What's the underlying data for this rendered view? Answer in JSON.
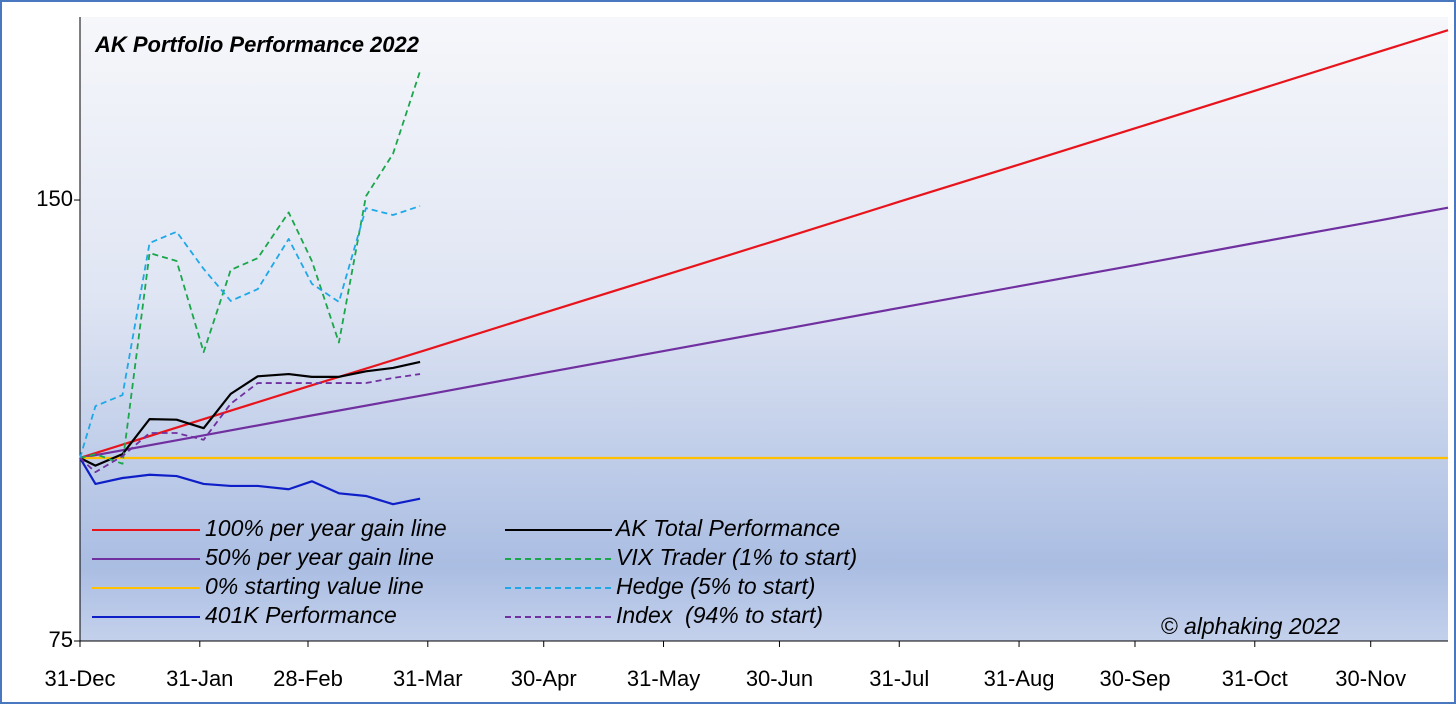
{
  "chart_data": {
    "type": "line",
    "title": "AK Portfolio Performance 2022",
    "annotation": "© alphaking 2022",
    "log_scale": true,
    "xlim": [
      0,
      354
    ],
    "xticks": [
      {
        "value": 0,
        "label": "31-Dec"
      },
      {
        "value": 31,
        "label": "31-Jan"
      },
      {
        "value": 59,
        "label": "28-Feb"
      },
      {
        "value": 90,
        "label": "31-Mar"
      },
      {
        "value": 120,
        "label": "30-Apr"
      },
      {
        "value": 151,
        "label": "31-May"
      },
      {
        "value": 181,
        "label": "30-Jun"
      },
      {
        "value": 212,
        "label": "31-Jul"
      },
      {
        "value": 243,
        "label": "31-Aug"
      },
      {
        "value": 273,
        "label": "30-Sep"
      },
      {
        "value": 304,
        "label": "31-Oct"
      },
      {
        "value": 334,
        "label": "30-Nov"
      }
    ],
    "ylim": [
      75,
      200
    ],
    "yticks": [
      75,
      150
    ],
    "series": [
      {
        "name": "100% per year gain line",
        "color": "#e8141c",
        "style": "solid",
        "x": [
          0,
          31,
          59,
          90,
          120,
          151,
          181,
          212,
          243,
          273,
          304,
          334,
          354
        ],
        "values": [
          100,
          106.1,
          111.9,
          118.6,
          125.6,
          133.2,
          141.0,
          149.6,
          158.6,
          167.9,
          178.1,
          188.6,
          195.9
        ]
      },
      {
        "name": "50% per year gain line",
        "color": "#7030a0",
        "style": "solid",
        "x": [
          0,
          31,
          59,
          90,
          120,
          151,
          181,
          212,
          243,
          273,
          304,
          334,
          354
        ],
        "values": [
          100,
          103.5,
          106.8,
          110.5,
          114.3,
          118.3,
          122.3,
          126.6,
          131.0,
          135.4,
          140.2,
          144.9,
          148.2
        ]
      },
      {
        "name": "0% starting value line",
        "color": "#ffc000",
        "style": "solid",
        "x": [
          0,
          354
        ],
        "values": [
          100,
          100
        ]
      },
      {
        "name": "401K Performance",
        "color": "#0f1fc8",
        "style": "solid",
        "x": [
          0,
          4,
          11,
          18,
          25,
          32,
          39,
          46,
          54,
          60,
          67,
          74,
          81,
          88
        ],
        "values": [
          100,
          96.0,
          96.9,
          97.4,
          97.2,
          96.0,
          95.7,
          95.7,
          95.2,
          96.4,
          94.6,
          94.2,
          93.0,
          93.8
        ]
      },
      {
        "name": "AK Total Performance",
        "color": "#000000",
        "style": "solid",
        "x": [
          0,
          4,
          11,
          18,
          25,
          32,
          39,
          46,
          54,
          60,
          67,
          74,
          81,
          88
        ],
        "values": [
          100,
          98.8,
          100.6,
          106.3,
          106.2,
          104.8,
          110.6,
          113.7,
          114.1,
          113.6,
          113.6,
          114.6,
          115.2,
          116.3
        ]
      },
      {
        "name": "VIX Trader (1% to start)",
        "color": "#1aa64a",
        "style": "dashed",
        "x": [
          0,
          4,
          11,
          18,
          25,
          32,
          39,
          46,
          54,
          60,
          67,
          74,
          81,
          88
        ],
        "values": [
          100,
          100.6,
          99.1,
          138.0,
          136.3,
          118.1,
          134.4,
          136.9,
          147.1,
          136.3,
          119.9,
          150.9,
          161.3,
          183.7
        ]
      },
      {
        "name": "Hedge (5% to start)",
        "color": "#1fa8e8",
        "style": "dashed",
        "x": [
          0,
          4,
          11,
          18,
          25,
          32,
          39,
          46,
          54,
          60,
          67,
          74,
          81,
          88
        ],
        "values": [
          100,
          108.5,
          110.4,
          140.2,
          142.7,
          134.6,
          128.0,
          130.4,
          141.1,
          131.5,
          127.8,
          148.1,
          146.5,
          148.6
        ]
      },
      {
        "name": "Index  (94% to start)",
        "color": "#7030a0",
        "style": "dashed",
        "x": [
          0,
          4,
          11,
          18,
          25,
          32,
          39,
          46,
          54,
          60,
          67,
          74,
          81,
          88
        ],
        "values": [
          100,
          97.8,
          100.3,
          104.0,
          104.0,
          102.9,
          108.9,
          112.5,
          112.5,
          112.5,
          112.5,
          112.5,
          113.4,
          114.1
        ]
      }
    ]
  }
}
